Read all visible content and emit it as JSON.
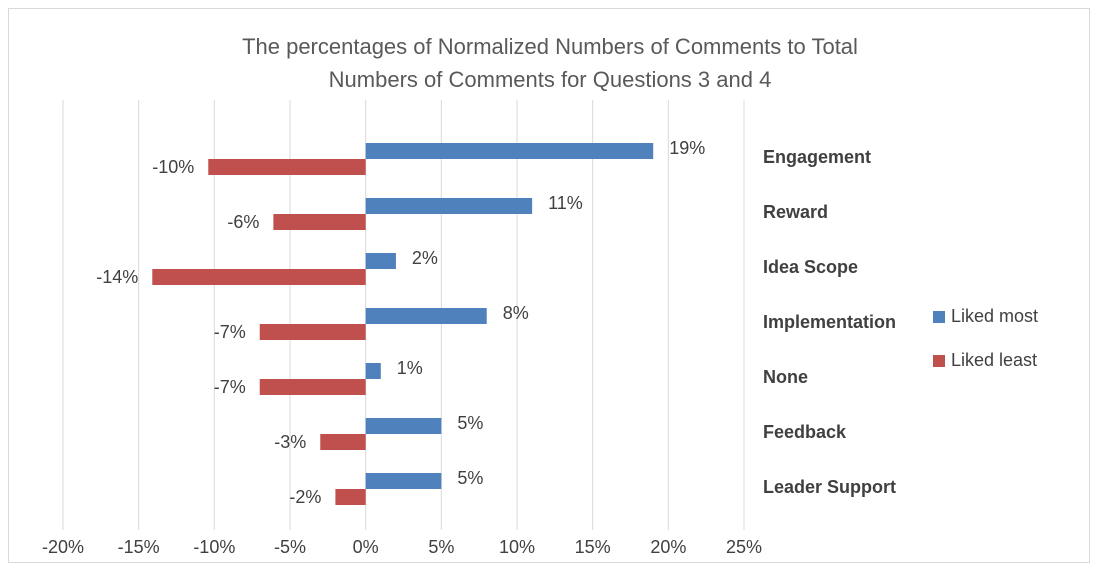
{
  "chart_data": {
    "type": "hbar",
    "title": "The percentages of Normalized Numbers of Comments to Total Numbers of Comments for Questions 3 and 4",
    "categories": [
      "Engagement",
      "Reward",
      "Idea Scope",
      "Implementation",
      "None",
      "Feedback",
      "Leader Support"
    ],
    "series": [
      {
        "name": "Liked most",
        "color": "#4f81bd",
        "values": [
          19,
          11,
          2,
          8,
          1,
          5,
          5
        ],
        "value_labels": [
          "19%",
          "11%",
          "2%",
          "8%",
          "1%",
          "5%",
          "5%"
        ]
      },
      {
        "name": "Liked least",
        "color": "#c0504d",
        "values": [
          -10.4,
          -6.1,
          -14.1,
          -7,
          -7,
          -3,
          -2
        ],
        "value_labels": [
          "-10%",
          "-6%",
          "-14%",
          "-7%",
          "-7%",
          "-3%",
          "-2%"
        ]
      }
    ],
    "xlim": [
      -20,
      25
    ],
    "xticks": [
      {
        "value": -20,
        "label": "-20%"
      },
      {
        "value": -15,
        "label": "-15%"
      },
      {
        "value": -10,
        "label": "-10%"
      },
      {
        "value": -5,
        "label": "-5%"
      },
      {
        "value": 0,
        "label": "0%"
      },
      {
        "value": 5,
        "label": "5%"
      },
      {
        "value": 10,
        "label": "10%"
      },
      {
        "value": 15,
        "label": "15%"
      },
      {
        "value": 20,
        "label": "20%"
      },
      {
        "value": 25,
        "label": "25%"
      }
    ],
    "grid": true,
    "legend": "right"
  }
}
